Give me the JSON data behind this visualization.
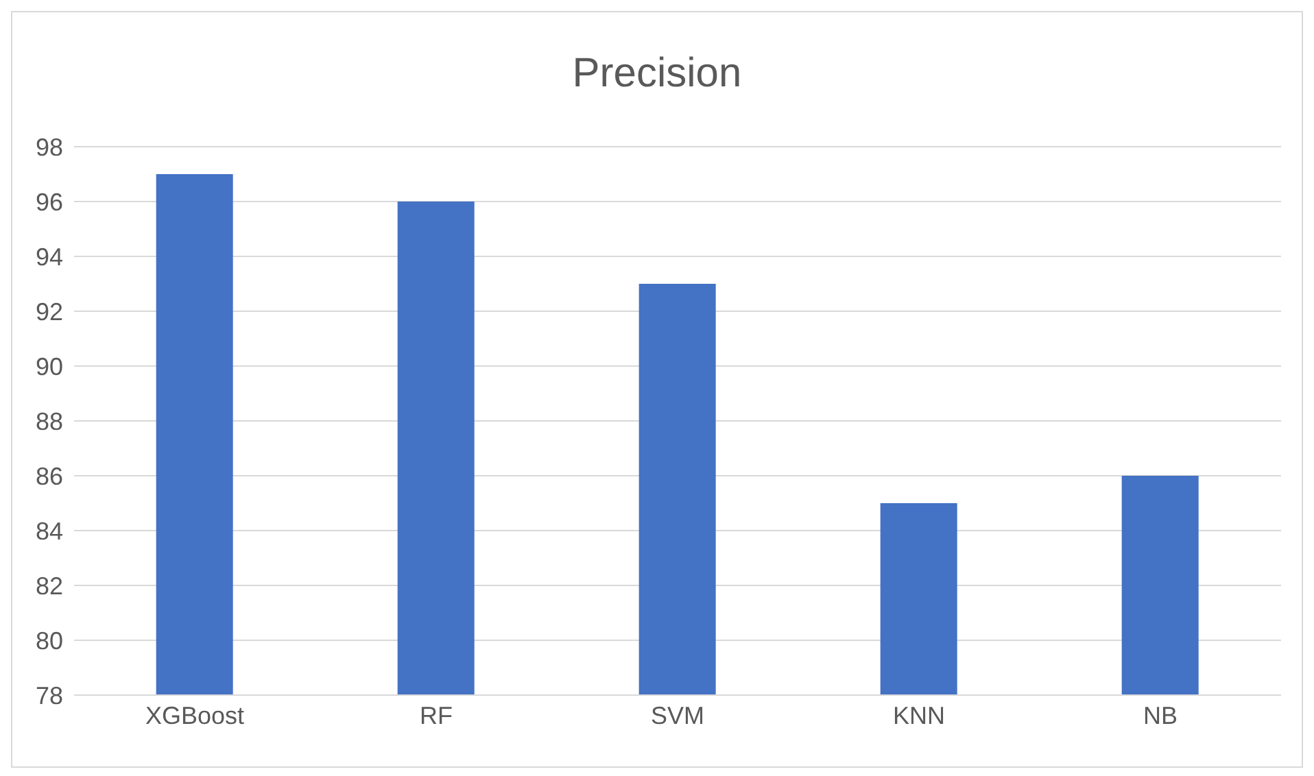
{
  "chart_data": {
    "type": "bar",
    "title": "Precision",
    "categories": [
      "XGBoost",
      "RF",
      "SVM",
      "KNN",
      "NB"
    ],
    "values": [
      97,
      96,
      93,
      85,
      86
    ],
    "color": "#4472c4",
    "ylim": [
      78,
      98
    ],
    "yticks": [
      78,
      80,
      82,
      84,
      86,
      88,
      90,
      92,
      94,
      96,
      98
    ],
    "grid": "y",
    "legend": false
  }
}
